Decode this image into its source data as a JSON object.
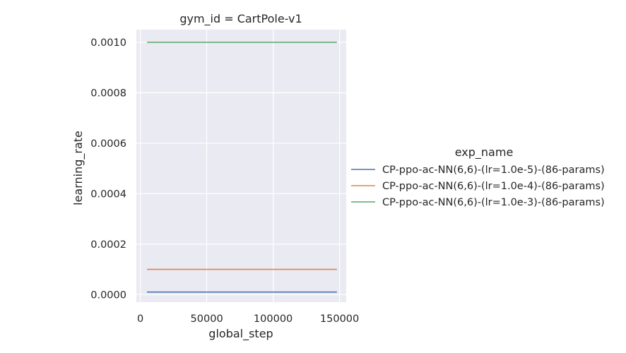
{
  "chart_data": {
    "type": "line",
    "title": "gym_id = CartPole-v1",
    "xlabel": "global_step",
    "ylabel": "learning_rate",
    "xlim": [
      -3000,
      155000
    ],
    "ylim": [
      -3e-05,
      0.00105
    ],
    "x_ticks": [
      0,
      50000,
      100000,
      150000
    ],
    "x_tick_labels": [
      "0",
      "50000",
      "100000",
      "150000"
    ],
    "y_ticks": [
      0,
      0.0002,
      0.0004,
      0.0006,
      0.0008,
      0.001
    ],
    "y_tick_labels": [
      "0.0000",
      "0.0002",
      "0.0004",
      "0.0006",
      "0.0008",
      "0.0010"
    ],
    "grid": true,
    "legend_title": "exp_name",
    "legend_position": "right",
    "series": [
      {
        "name": "CP-ppo-ac-NN(6,6)-(lr=1.0e-5)-(86-params)",
        "color": "#4c72b0",
        "x": [
          5000,
          148000
        ],
        "y": [
          1e-05,
          1e-05
        ]
      },
      {
        "name": "CP-ppo-ac-NN(6,6)-(lr=1.0e-4)-(86-params)",
        "color": "#dd8452",
        "x": [
          5000,
          148000
        ],
        "y": [
          0.0001,
          0.0001
        ]
      },
      {
        "name": "CP-ppo-ac-NN(6,6)-(lr=1.0e-3)-(86-params)",
        "color": "#55a868",
        "x": [
          5000,
          148000
        ],
        "y": [
          0.001,
          0.001
        ]
      }
    ]
  }
}
